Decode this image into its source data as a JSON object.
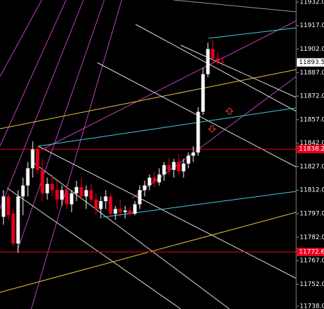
{
  "chart_data": {
    "type": "candlestick",
    "up_color": "#ffffff",
    "down_color": "#e8001c",
    "ylim": [
      11736.2,
      11933.3
    ],
    "yticks": [
      {
        "value": 11932,
        "label": "11932.0"
      },
      {
        "value": 11917,
        "label": "11917.0"
      },
      {
        "value": 11902,
        "label": "11902.0"
      },
      {
        "value": 11887,
        "label": "11887.0"
      },
      {
        "value": 11872,
        "label": "11872.0"
      },
      {
        "value": 11857,
        "label": "11857.0"
      },
      {
        "value": 11842,
        "label": "11842.0"
      },
      {
        "value": 11827,
        "label": "11827.0"
      },
      {
        "value": 11812,
        "label": "11812.0"
      },
      {
        "value": 11797,
        "label": "11797.0"
      },
      {
        "value": 11782,
        "label": "11782.0"
      },
      {
        "value": 11767,
        "label": "11767.0"
      },
      {
        "value": 11752,
        "label": "11752.0"
      },
      {
        "value": 11738,
        "label": "11738.0"
      }
    ],
    "open": [
      11795,
      11808,
      11797,
      11778,
      11808,
      11815,
      11826,
      11838,
      11825,
      11810,
      11816,
      11812,
      11806,
      11812,
      11803,
      11810,
      11814,
      11808,
      11812,
      11806,
      11800,
      11805,
      11808,
      11797,
      11800,
      11798,
      11799,
      11797,
      11803,
      11812,
      11815,
      11820,
      11817,
      11822,
      11828,
      11825,
      11830,
      11824,
      11829,
      11834,
      11836,
      11862,
      11886,
      11902,
      11896,
      11894
    ],
    "high": [
      11812,
      11810,
      11800,
      11812,
      11820,
      11830,
      11843,
      11840,
      11832,
      11820,
      11822,
      11818,
      11815,
      11816,
      11812,
      11818,
      11820,
      11815,
      11816,
      11810,
      11808,
      11812,
      11810,
      11802,
      11806,
      11802,
      11802,
      11805,
      11815,
      11818,
      11822,
      11824,
      11826,
      11830,
      11833,
      11832,
      11835,
      11832,
      11836,
      11840,
      11865,
      11890,
      11906,
      11908,
      11900,
      11897
    ],
    "low": [
      11790,
      11793,
      11776,
      11772,
      11796,
      11808,
      11820,
      11822,
      11805,
      11806,
      11808,
      11800,
      11802,
      11800,
      11798,
      11805,
      11806,
      11800,
      11804,
      11796,
      11794,
      11800,
      11795,
      11793,
      11795,
      11794,
      11795,
      11796,
      11800,
      11808,
      11812,
      11814,
      11815,
      11818,
      11822,
      11820,
      11822,
      11820,
      11826,
      11830,
      11834,
      11860,
      11884,
      11893,
      11892,
      11891
    ],
    "close": [
      11808,
      11796,
      11778,
      11808,
      11815,
      11826,
      11838,
      11825,
      11810,
      11816,
      11812,
      11806,
      11812,
      11803,
      11810,
      11814,
      11808,
      11812,
      11806,
      11800,
      11805,
      11808,
      11797,
      11800,
      11798,
      11799,
      11797,
      11803,
      11812,
      11815,
      11820,
      11817,
      11822,
      11828,
      11825,
      11830,
      11824,
      11829,
      11834,
      11836,
      11862,
      11886,
      11902,
      11896,
      11894,
      11893.5
    ],
    "current_price": 11893.5,
    "level_lines": [
      11838.2,
      11772.6
    ],
    "level_color": "#e8001c"
  }
}
